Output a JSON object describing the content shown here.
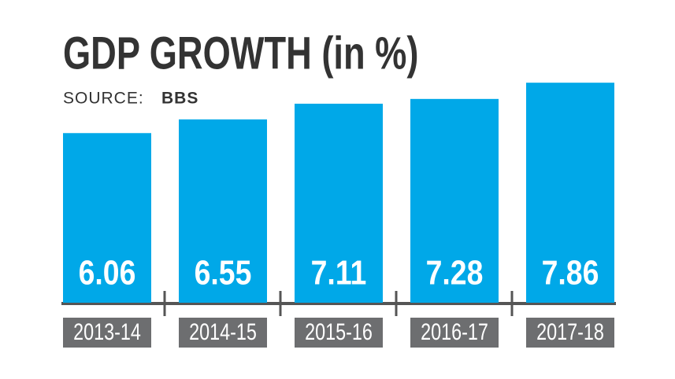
{
  "chart_data": {
    "type": "bar",
    "title": "GDP GROWTH (in %)",
    "source_label": "SOURCE:",
    "source": "BBS",
    "categories": [
      "2013-14",
      "2014-15",
      "2015-16",
      "2016-17",
      "2017-18"
    ],
    "values": [
      6.06,
      6.55,
      7.11,
      7.28,
      7.86
    ],
    "color": "#00a8e8"
  }
}
